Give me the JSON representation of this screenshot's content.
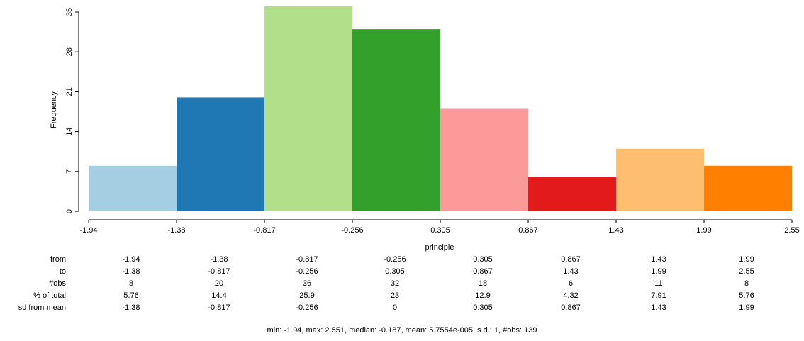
{
  "chart_data": {
    "type": "bar",
    "ylabel": "Frequency",
    "xlabel": "principle",
    "bin_edges": [
      -1.94,
      -1.38,
      -0.817,
      -0.256,
      0.305,
      0.867,
      1.43,
      1.99,
      2.55
    ],
    "bin_edge_labels": [
      "-1.94",
      "-1.38",
      "-0.817",
      "-0.256",
      "0.305",
      "0.867",
      "1.43",
      "1.99",
      "2.55"
    ],
    "values": [
      8,
      20,
      36,
      32,
      18,
      6,
      11,
      8
    ],
    "colors": [
      "#a6cee3",
      "#1f78b4",
      "#b2df8a",
      "#33a02c",
      "#fb9a99",
      "#e31a1c",
      "#fdbf6f",
      "#ff7f00"
    ],
    "ylim": [
      0,
      36
    ],
    "yticks": [
      0,
      7,
      14,
      21,
      28,
      35
    ],
    "grid": false
  },
  "table": {
    "rows": [
      {
        "label": "from",
        "values": [
          "-1.94",
          "-1.38",
          "-0.817",
          "-0.256",
          "0.305",
          "0.867",
          "1.43",
          "1.99"
        ]
      },
      {
        "label": "to",
        "values": [
          "-1.38",
          "-0.817",
          "-0.256",
          "0.305",
          "0.867",
          "1.43",
          "1.99",
          "2.55"
        ]
      },
      {
        "label": "#obs",
        "values": [
          "8",
          "20",
          "36",
          "32",
          "18",
          "6",
          "11",
          "8"
        ]
      },
      {
        "label": "% of total",
        "values": [
          "5.76",
          "14.4",
          "25.9",
          "23",
          "12.9",
          "4.32",
          "7.91",
          "5.76"
        ]
      },
      {
        "label": "sd from mean",
        "values": [
          "-1.38",
          "-0.817",
          "-0.256",
          "0",
          "0.305",
          "0.867",
          "1.43",
          "1.99"
        ]
      }
    ]
  },
  "summary": "min: -1.94, max: 2.551, median: -0.187, mean: 5.7554e-005, s.d.: 1, #obs: 139"
}
